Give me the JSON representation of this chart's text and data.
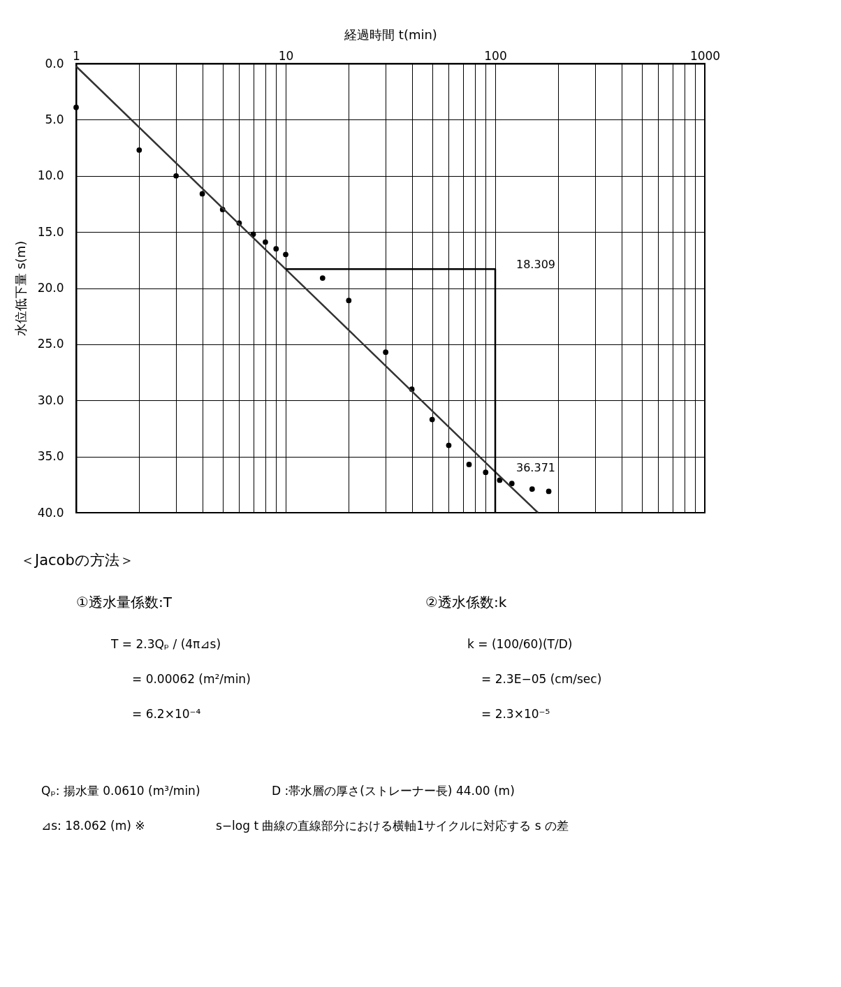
{
  "chart_data": {
    "type": "scatter",
    "xlabel": "経過時間 t(min)",
    "ylabel": "水位低下量 s(m)",
    "log": "x",
    "grid": true,
    "marker": "circle",
    "xlim": [
      1,
      1000
    ],
    "xticks": [
      1,
      {
        "value": 2,
        "label": null
      },
      {
        "value": 3,
        "label": null
      },
      {
        "value": 4,
        "label": null
      },
      {
        "value": 5,
        "label": null
      },
      {
        "value": 6,
        "label": null
      },
      {
        "value": 7,
        "label": null
      },
      {
        "value": 8,
        "label": null
      },
      {
        "value": 9,
        "label": null
      },
      10,
      {
        "value": 20,
        "label": null
      },
      {
        "value": 30,
        "label": null
      },
      {
        "value": 40,
        "label": null
      },
      {
        "value": 50,
        "label": null
      },
      {
        "value": 60,
        "label": null
      },
      {
        "value": 70,
        "label": null
      },
      {
        "value": 80,
        "label": null
      },
      {
        "value": 90,
        "label": null
      },
      100,
      {
        "value": 200,
        "label": null
      },
      {
        "value": 300,
        "label": null
      },
      {
        "value": 400,
        "label": null
      },
      {
        "value": 500,
        "label": null
      },
      {
        "value": 600,
        "label": null
      },
      {
        "value": 700,
        "label": null
      },
      {
        "value": 800,
        "label": null
      },
      {
        "value": 900,
        "label": null
      },
      1000
    ],
    "ylim": [
      40,
      0
    ],
    "yticks": [
      {
        "value": 0,
        "label": "0.0"
      },
      {
        "value": 5,
        "label": "5.0"
      },
      {
        "value": 10,
        "label": "10.0"
      },
      {
        "value": 15,
        "label": "15.0"
      },
      {
        "value": 20,
        "label": "20.0"
      },
      {
        "value": 25,
        "label": "25.0"
      },
      {
        "value": 30,
        "label": "30.0"
      },
      {
        "value": 35,
        "label": "35.0"
      },
      {
        "value": 40,
        "label": "40.0"
      }
    ],
    "series": [
      {
        "color": "#000000",
        "x": [
          1,
          2,
          3,
          4,
          5,
          6,
          7,
          8,
          9,
          10,
          15,
          20,
          30,
          40,
          50,
          60,
          75,
          90,
          105,
          120,
          150,
          180
        ],
        "values": [
          3.9,
          7.7,
          10.0,
          11.6,
          13.0,
          14.2,
          15.2,
          15.9,
          16.5,
          17.0,
          19.1,
          21.1,
          25.7,
          29.0,
          31.7,
          34.0,
          35.7,
          36.4,
          37.1,
          37.4,
          37.9,
          38.1
        ]
      },
      {
        "type": "line",
        "marker": "none",
        "color": "#333333",
        "x": [
          1,
          10,
          100,
          160
        ],
        "values": [
          0.25,
          18.309,
          36.371,
          40.0
        ]
      },
      {
        "type": "line",
        "marker": "none",
        "color": "#000000",
        "x": [
          10,
          100,
          100
        ],
        "values": [
          18.309,
          18.309,
          40.0
        ]
      }
    ],
    "annotations": [
      {
        "text": "18.309",
        "x": 100,
        "y": 18.309
      },
      {
        "text": "36.371",
        "x": 100,
        "y": 36.371
      },
      "＜Jacobの方法＞",
      "①透水量係数:T",
      "T = 2.3Qₚ / (4π⊿s)",
      "= 0.00062 (m²/min)",
      "= 6.2×10⁻⁴",
      "②透水係数:k",
      "k = (100/60)(T/D)",
      "= 2.3E−05 (cm/sec)",
      "= 2.3×10⁻⁵",
      "Qₚ: 揚水量 0.0610 (m³/min)",
      "D :帯水層の厚さ(ストレーナー長) 44.00 (m)",
      "⊿s: 18.062 (m) ※",
      "s−log t 曲線の直線部分における横軸1サイクルに対応する s の差"
    ]
  }
}
